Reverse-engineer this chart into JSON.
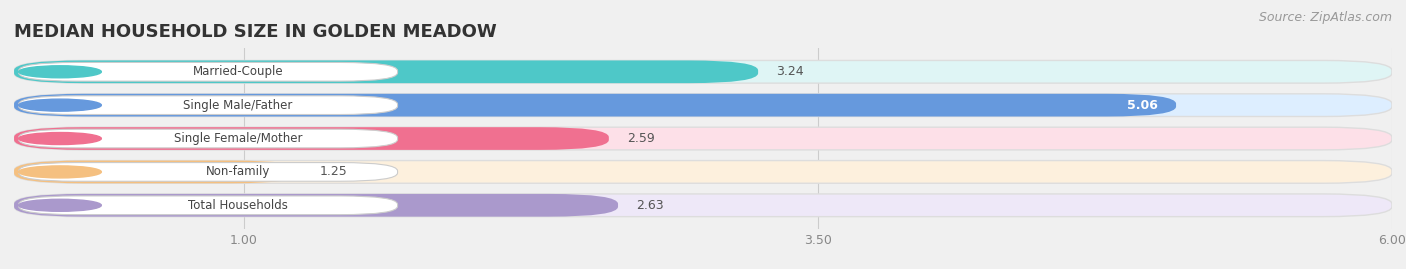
{
  "title": "MEDIAN HOUSEHOLD SIZE IN GOLDEN MEADOW",
  "source": "Source: ZipAtlas.com",
  "categories": [
    "Married-Couple",
    "Single Male/Father",
    "Single Female/Mother",
    "Non-family",
    "Total Households"
  ],
  "values": [
    3.24,
    5.06,
    2.59,
    1.25,
    2.63
  ],
  "bar_colors": [
    "#4ec8c8",
    "#6699dd",
    "#f07090",
    "#f5c080",
    "#aa99cc"
  ],
  "bar_bg_colors": [
    "#dff5f5",
    "#ddeeff",
    "#fde0e8",
    "#fdf0dd",
    "#eee8f8"
  ],
  "dot_colors": [
    "#4ec8c8",
    "#6699dd",
    "#f07090",
    "#f5c080",
    "#aa99cc"
  ],
  "label_in_bar": [
    false,
    true,
    false,
    false,
    false
  ],
  "xmin": 0.0,
  "xmax": 6.0,
  "x_axis_min": 1.0,
  "x_axis_max": 6.0,
  "xticks": [
    1.0,
    3.5,
    6.0
  ],
  "background_color": "#f0f0f0",
  "title_fontsize": 13,
  "source_fontsize": 9
}
